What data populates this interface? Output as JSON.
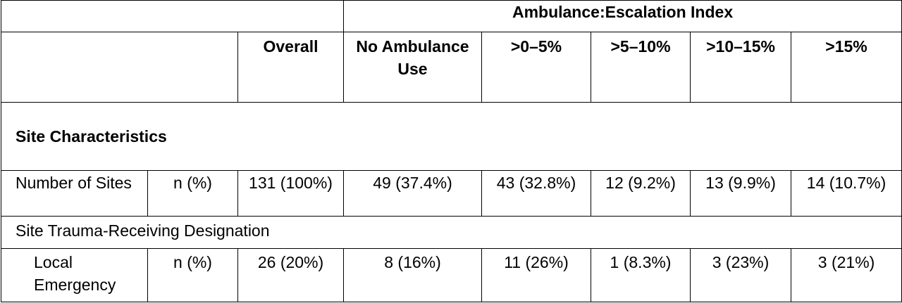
{
  "header": {
    "group_label": "Ambulance:Escalation Index",
    "overall": "Overall",
    "columns": [
      "No Ambulance Use",
      ">0–5%",
      ">5–10%",
      ">10–15%",
      ">15%"
    ]
  },
  "sections": {
    "site_characteristics": "Site Characteristics",
    "trauma_designation": "Site Trauma-Receiving Designation"
  },
  "rows": {
    "number_of_sites": {
      "label": "Number of Sites",
      "stat": "n (%)",
      "overall": "131 (100%)",
      "values": [
        "49 (37.4%)",
        "43 (32.8%)",
        "12 (9.2%)",
        "13 (9.9%)",
        "14 (10.7%)"
      ]
    },
    "local_emergency": {
      "label": "Local Emergency",
      "stat": "n (%)",
      "overall": "26 (20%)",
      "values": [
        "8 (16%)",
        "11 (26%)",
        "1 (8.3%)",
        "3 (23%)",
        "3 (21%)"
      ]
    }
  }
}
